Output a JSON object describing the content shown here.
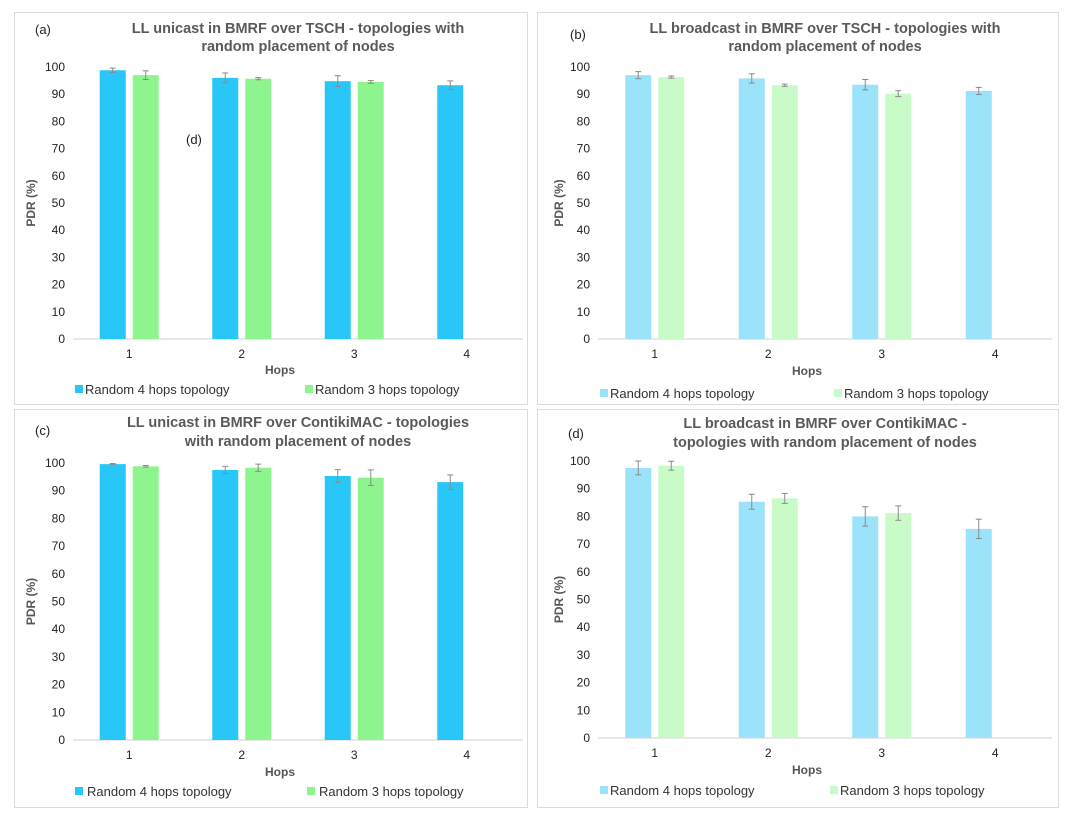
{
  "chart_data": [
    {
      "panel_label": "(a)",
      "type": "bar",
      "title_lines": [
        "LL unicast in BMRF over TSCH - topologies with",
        "random placement of nodes"
      ],
      "xlabel": "Hops",
      "ylabel": "PDR (%)",
      "categories": [
        "1",
        "2",
        "3",
        "4"
      ],
      "ylim": [
        0,
        100
      ],
      "yticks": [
        "0",
        "10",
        "20",
        "30",
        "40",
        "50",
        "60",
        "70",
        "80",
        "90",
        "100"
      ],
      "legend_position": "bottom",
      "colors": [
        "#29c7f7",
        "#8ef58e"
      ],
      "annotation": "(d)",
      "series": [
        {
          "name": "Random 4 hops topology",
          "values": [
            98.8,
            96.0,
            94.8,
            93.3
          ],
          "errors": [
            0.8,
            1.8,
            2.0,
            1.6
          ]
        },
        {
          "name": "Random 3 hops topology",
          "values": [
            97.0,
            95.7,
            94.5,
            null
          ],
          "errors": [
            1.6,
            0.4,
            0.5,
            null
          ]
        }
      ]
    },
    {
      "panel_label": "(b)",
      "type": "bar",
      "title_lines": [
        "LL broadcast in BMRF over TSCH - topologies with",
        "random placement of nodes"
      ],
      "xlabel": "Hops",
      "ylabel": "PDR (%)",
      "categories": [
        "1",
        "2",
        "3",
        "4"
      ],
      "ylim": [
        0,
        100
      ],
      "yticks": [
        "0",
        "10",
        "20",
        "30",
        "40",
        "50",
        "60",
        "70",
        "80",
        "90",
        "100"
      ],
      "legend_position": "bottom",
      "colors": [
        "#9be3fa",
        "#c8fbc8"
      ],
      "series": [
        {
          "name": "Random 4 hops topology",
          "values": [
            97.0,
            95.8,
            93.5,
            91.2
          ],
          "errors": [
            1.3,
            1.7,
            1.9,
            1.3
          ]
        },
        {
          "name": "Random 3 hops topology",
          "values": [
            96.3,
            93.3,
            90.2,
            null
          ],
          "errors": [
            0.4,
            0.4,
            1.1,
            null
          ]
        }
      ]
    },
    {
      "panel_label": "(c)",
      "type": "bar",
      "title_lines": [
        "LL unicast in BMRF over ContikiMAC - topologies",
        "with random placement of nodes"
      ],
      "xlabel": "Hops",
      "ylabel": "PDR (%)",
      "categories": [
        "1",
        "2",
        "3",
        "4"
      ],
      "ylim": [
        0,
        100
      ],
      "yticks": [
        "0",
        "10",
        "20",
        "30",
        "40",
        "50",
        "60",
        "70",
        "80",
        "90",
        "100"
      ],
      "legend_position": "bottom",
      "colors": [
        "#29c7f7",
        "#8ef58e"
      ],
      "series": [
        {
          "name": "Random 4 hops topology",
          "values": [
            99.6,
            97.5,
            95.3,
            93.1
          ],
          "errors": [
            0.2,
            1.3,
            2.3,
            2.6
          ]
        },
        {
          "name": "Random 3 hops topology",
          "values": [
            98.8,
            98.3,
            94.7,
            null
          ],
          "errors": [
            0.3,
            1.3,
            2.8,
            null
          ]
        }
      ]
    },
    {
      "panel_label": "(d)",
      "type": "bar",
      "title_lines": [
        "LL broadcast in BMRF over ContikiMAC -",
        "topologies with random placement of nodes"
      ],
      "xlabel": "Hops",
      "ylabel": "PDR (%)",
      "categories": [
        "1",
        "2",
        "3",
        "4"
      ],
      "ylim": [
        0,
        100
      ],
      "yticks": [
        "0",
        "10",
        "20",
        "30",
        "40",
        "50",
        "60",
        "70",
        "80",
        "90",
        "100"
      ],
      "legend_position": "bottom",
      "colors": [
        "#9be3fa",
        "#c8fbc8"
      ],
      "series": [
        {
          "name": "Random 4 hops topology",
          "values": [
            97.5,
            85.3,
            80.0,
            75.5
          ],
          "errors": [
            2.5,
            2.7,
            3.5,
            3.5
          ]
        },
        {
          "name": "Random 3 hops topology",
          "values": [
            98.3,
            86.5,
            81.2,
            null
          ],
          "errors": [
            1.6,
            1.8,
            2.6,
            null
          ]
        }
      ]
    }
  ]
}
